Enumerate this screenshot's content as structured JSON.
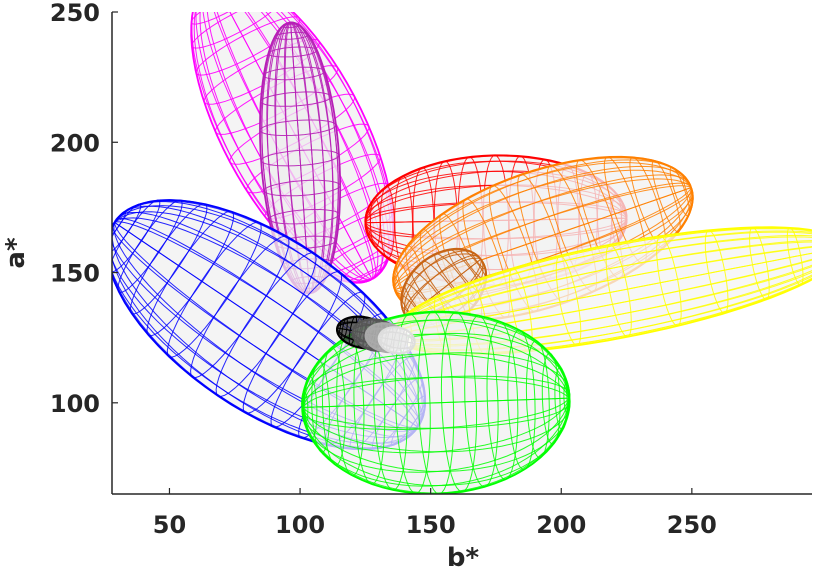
{
  "chart_data": {
    "type": "scatter",
    "subtype": "3d-wireframe-ellipsoids",
    "title": "",
    "xlabel": "b*",
    "ylabel": "a*",
    "xlim": [
      28,
      296
    ],
    "ylim": [
      65,
      250
    ],
    "xticks": [
      50,
      100,
      150,
      200,
      250
    ],
    "yticks": [
      100,
      150,
      200,
      250
    ],
    "grid": false,
    "legend": "none",
    "series": [
      {
        "color": "#ff00ff",
        "cx": 97,
        "cy": 205,
        "rx": 65,
        "ry": 27,
        "angle": -62,
        "lat": 16,
        "lon": 20,
        "fill": "#f0f0f0",
        "opacity": 0.9,
        "clip": true
      },
      {
        "color": "#b61fb6",
        "cx": 100,
        "cy": 194,
        "rx": 52,
        "ry": 15,
        "angle": -86,
        "lat": 14,
        "lon": 20,
        "fill": "#eeeeee",
        "opacity": 0.9,
        "clip": true
      },
      {
        "color": "#ff0000",
        "cx": 175,
        "cy": 170,
        "rx": 50,
        "ry": 25,
        "angle": 1,
        "lat": 16,
        "lon": 22,
        "fill": "#f3f3f3",
        "opacity": 0.85,
        "clip": false
      },
      {
        "color": "#ff8000",
        "cx": 193,
        "cy": 163,
        "rx": 60,
        "ry": 26,
        "angle": 19,
        "lat": 16,
        "lon": 22,
        "fill": "#f2f2f2",
        "opacity": 0.85,
        "clip": false
      },
      {
        "color": "#c86414",
        "cx": 155,
        "cy": 144,
        "rx": 18,
        "ry": 13,
        "angle": 38,
        "lat": 10,
        "lon": 14,
        "fill": "#eeeeee",
        "opacity": 0.9,
        "clip": false
      },
      {
        "color": "#ffff00",
        "cx": 222,
        "cy": 143,
        "rx": 88,
        "ry": 18,
        "angle": 11,
        "lat": 14,
        "lon": 24,
        "fill": "#f4f4f4",
        "opacity": 0.85,
        "clip": false
      },
      {
        "color": "#0000ff",
        "cx": 87,
        "cy": 130,
        "rx": 70,
        "ry": 33,
        "angle": -34,
        "lat": 18,
        "lon": 22,
        "fill": "#f0f0f0",
        "opacity": 0.85,
        "clip": false
      },
      {
        "color": "#00ff00",
        "cx": 152,
        "cy": 100,
        "rx": 51,
        "ry": 35,
        "angle": 2,
        "lat": 18,
        "lon": 22,
        "fill": "#f0f0f0",
        "opacity": 0.85,
        "clip": false
      },
      {
        "color": "#000000",
        "cx": 124,
        "cy": 127,
        "rx": 10,
        "ry": 6,
        "angle": -10,
        "lat": 8,
        "lon": 10,
        "fill": "#333333",
        "opacity": 1,
        "clip": false
      },
      {
        "color": "#555555",
        "cx": 129,
        "cy": 126,
        "rx": 9,
        "ry": 6,
        "angle": -10,
        "lat": 8,
        "lon": 10,
        "fill": "#777777",
        "opacity": 1,
        "clip": false
      },
      {
        "color": "#aaaaaa",
        "cx": 133,
        "cy": 125,
        "rx": 8,
        "ry": 5.5,
        "angle": -10,
        "lat": 8,
        "lon": 10,
        "fill": "#bbbbbb",
        "opacity": 1,
        "clip": false
      },
      {
        "color": "#dddddd",
        "cx": 137,
        "cy": 124,
        "rx": 7,
        "ry": 5,
        "angle": -10,
        "lat": 8,
        "lon": 10,
        "fill": "#ffffff",
        "opacity": 1,
        "clip": false
      }
    ]
  }
}
